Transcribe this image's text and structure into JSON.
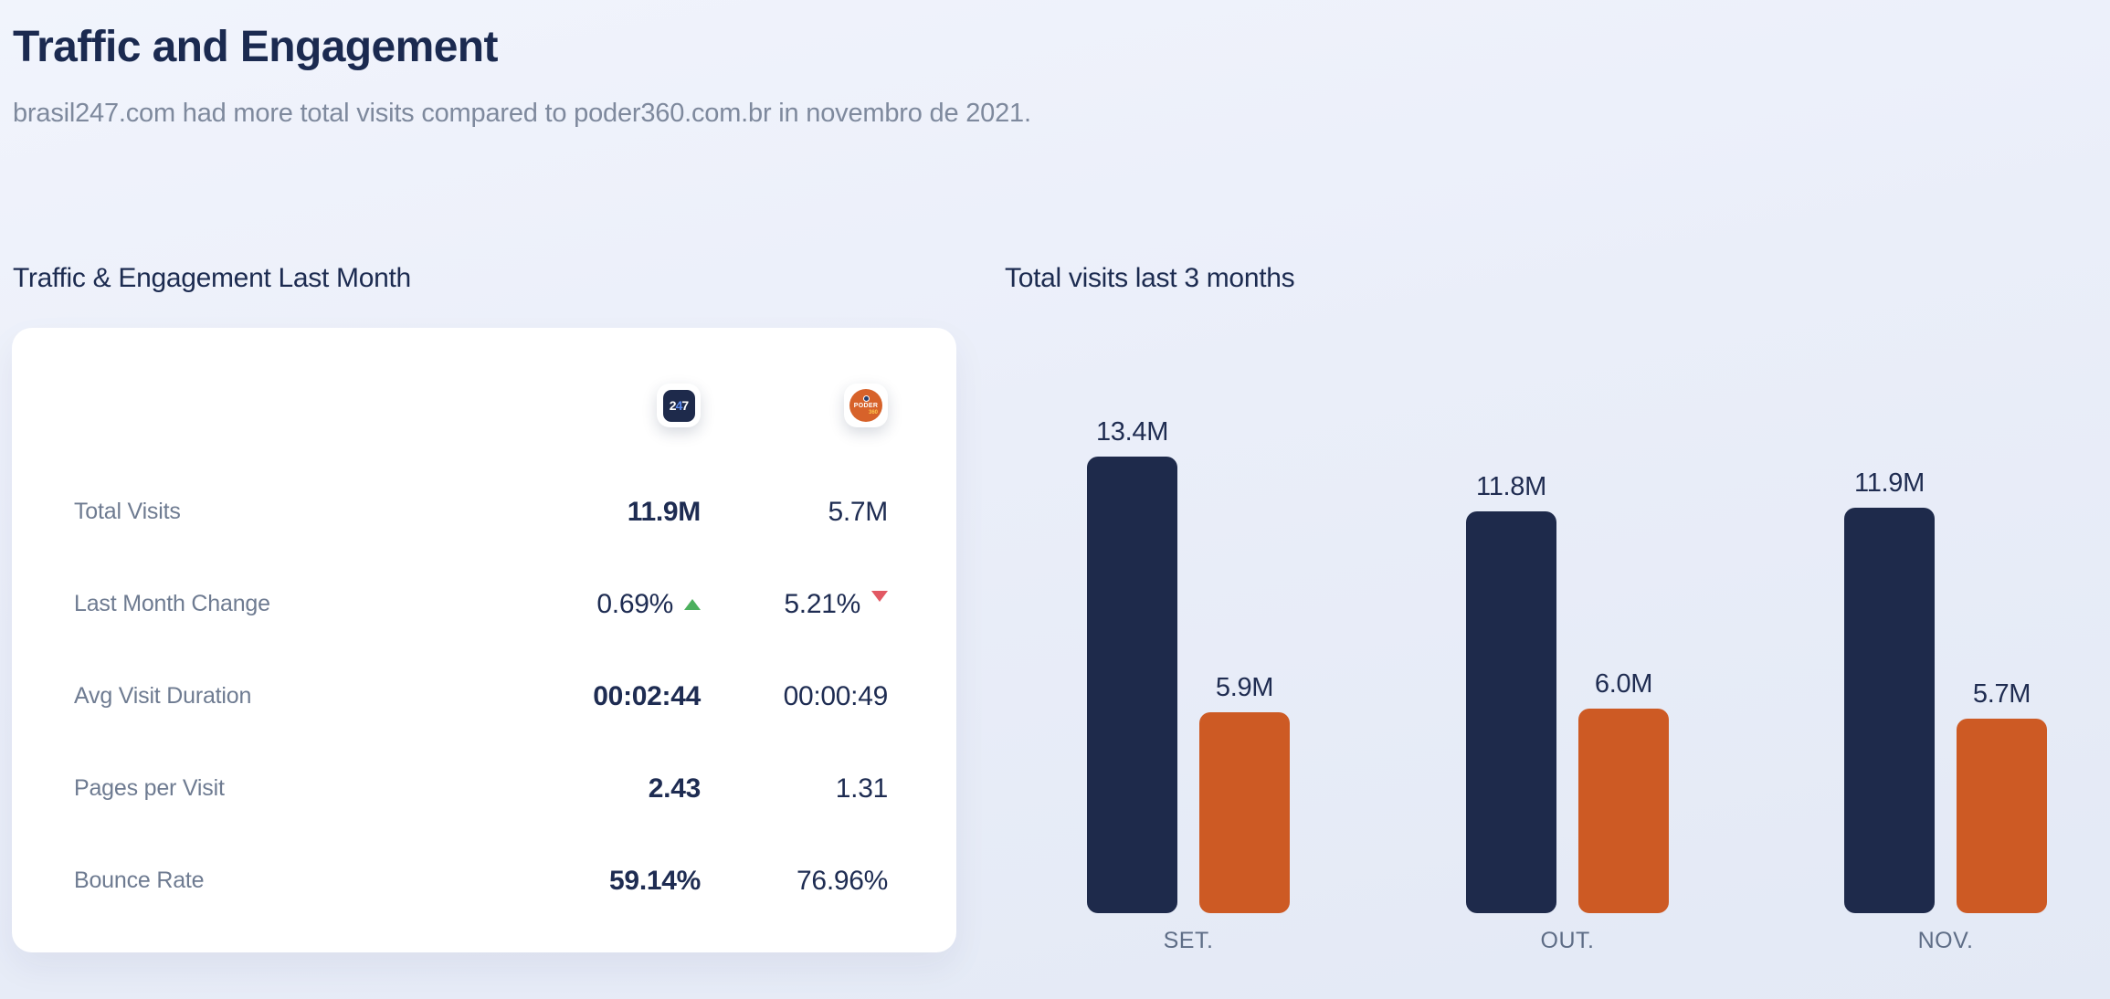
{
  "header": {
    "title": "Traffic and Engagement",
    "subtitle": "brasil247.com had more total visits compared to poder360.com.br in novembro de 2021."
  },
  "comparison_card": {
    "heading": "Traffic & Engagement Last Month",
    "columns": [
      {
        "site": "brasil247.com",
        "icon": "brasil247-logo",
        "logo_text": "247",
        "logo_bg": "#1e2a4b"
      },
      {
        "site": "poder360.com.br",
        "icon": "poder360-logo",
        "logo_text": "PODER",
        "logo_sub": "360",
        "logo_bg": "#d7622a"
      }
    ],
    "rows": [
      {
        "label": "Total Visits",
        "values": [
          "11.9M",
          "5.7M"
        ],
        "bold": [
          true,
          false
        ],
        "trends": [
          null,
          null
        ]
      },
      {
        "label": "Last Month Change",
        "values": [
          "0.69%",
          "5.21%"
        ],
        "bold": [
          false,
          false
        ],
        "trends": [
          "up",
          "down"
        ]
      },
      {
        "label": "Avg Visit Duration",
        "values": [
          "00:02:44",
          "00:00:49"
        ],
        "bold": [
          true,
          false
        ],
        "trends": [
          null,
          null
        ]
      },
      {
        "label": "Pages per Visit",
        "values": [
          "2.43",
          "1.31"
        ],
        "bold": [
          true,
          false
        ],
        "trends": [
          null,
          null
        ]
      },
      {
        "label": "Bounce Rate",
        "values": [
          "59.14%",
          "76.96%"
        ],
        "bold": [
          true,
          false
        ],
        "trends": [
          null,
          null
        ]
      }
    ]
  },
  "chart": {
    "heading": "Total visits last 3 months"
  },
  "chart_data": {
    "type": "bar",
    "title": "Total visits last 3 months",
    "categories": [
      "SET.",
      "OUT.",
      "NOV."
    ],
    "series": [
      {
        "name": "brasil247.com",
        "color": "#1e2a4b",
        "values": [
          13.4,
          11.8,
          11.9
        ],
        "labels": [
          "13.4M",
          "11.8M",
          "11.9M"
        ]
      },
      {
        "name": "poder360.com.br",
        "color": "#cd5a24",
        "values": [
          5.9,
          6.0,
          5.7
        ],
        "labels": [
          "5.9M",
          "6.0M",
          "5.7M"
        ]
      }
    ],
    "unit": "millions of visits",
    "ylim": [
      0,
      14
    ],
    "grid": false,
    "legend": "none",
    "value_labels": "above bars"
  },
  "colors": {
    "accent_navy": "#1e2a4b",
    "accent_orange": "#cd5a24",
    "positive_green": "#4cb05e",
    "negative_red": "#e25863",
    "text_dark": "#1e2c52",
    "text_gray": "#7e899d",
    "card_bg": "#ffffff"
  }
}
